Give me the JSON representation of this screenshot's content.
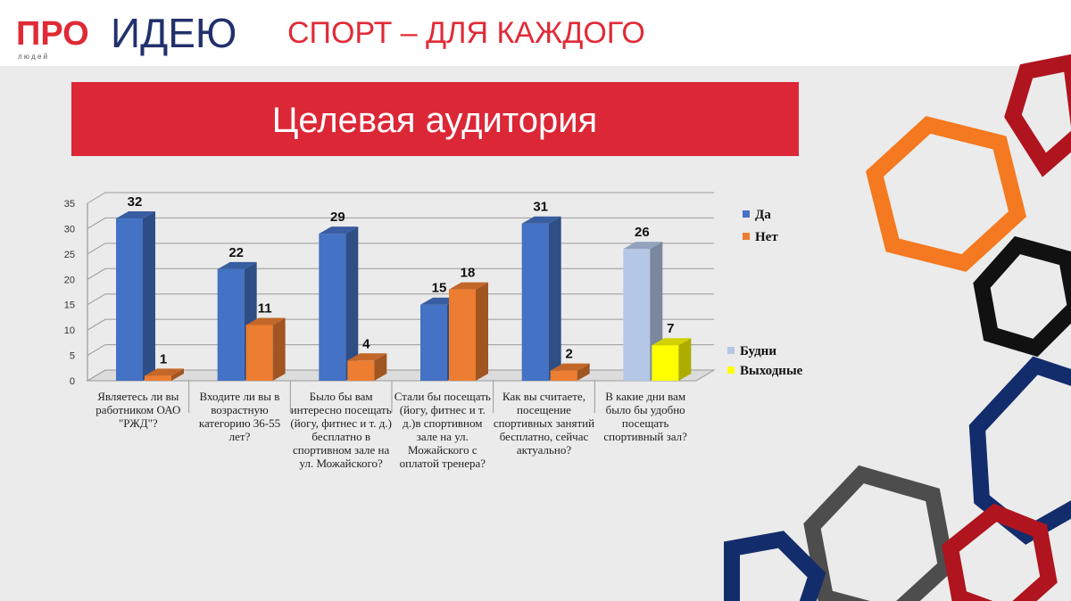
{
  "logo": {
    "pro": "ПРО",
    "idea": "ИДЕЮ",
    "people": "л ю д е й"
  },
  "header": {
    "title": "СПОРТ – ДЛЯ КАЖДОГО"
  },
  "banner": {
    "title": "Целевая аудитория"
  },
  "chart_data": {
    "type": "bar",
    "categories": [
      "Являетесь ли вы работником ОАО \"РЖД\"?",
      "Входите ли вы в возрастную категорию 36-55 лет?",
      "Было бы вам интересно посещать (йогу, фитнес и т. д.) бесплатно в спортивном зале на ул. Можайского?",
      "Стали бы посещать (йогу, фитнес и т. д.)в спортивном зале на ул. Можайского с оплатой тренера?",
      "Как вы считаете, посещение спортивных занятий бесплатно, сейчас актуально?",
      "В какие дни вам было бы удобно посещать спортивный зал?"
    ],
    "series": [
      {
        "name": "Да",
        "color": "#4472c4",
        "values": [
          32,
          22,
          29,
          15,
          31,
          null
        ]
      },
      {
        "name": "Нет",
        "color": "#ed7d31",
        "values": [
          1,
          11,
          4,
          18,
          2,
          null
        ]
      },
      {
        "name": "Будни",
        "color": "#b4c7e7",
        "values": [
          null,
          null,
          null,
          null,
          null,
          26
        ]
      },
      {
        "name": "Выходные",
        "color": "#ffff00",
        "values": [
          null,
          null,
          null,
          null,
          null,
          7
        ]
      }
    ],
    "ylim": [
      0,
      35
    ],
    "yticks": [
      0,
      5,
      10,
      15,
      20,
      25,
      30,
      35
    ],
    "grid": true
  }
}
